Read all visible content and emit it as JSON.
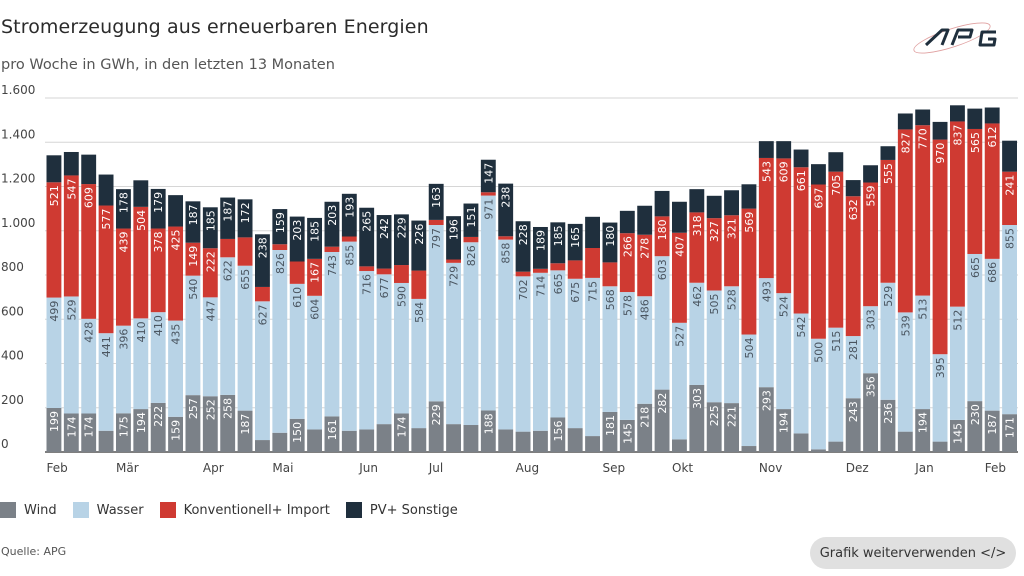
{
  "header": {
    "title": "Stromerzeugung aus erneuerbaren Energien",
    "subtitle": "pro Woche in GWh, in den letzten 13 Monaten",
    "logo_text": "APG"
  },
  "footer": {
    "source": "Quelle: APG",
    "reuse_button": "Grafik weiterverwenden </>"
  },
  "chart_data": {
    "type": "bar",
    "stacked": true,
    "title": "Stromerzeugung aus erneuerbaren Energien",
    "subtitle": "pro Woche in GWh, in den letzten 13 Monaten",
    "ylim": [
      0,
      1600
    ],
    "yticks": [
      0,
      200,
      400,
      600,
      800,
      1000,
      1200,
      1400,
      1600
    ],
    "ytick_labels": [
      "0",
      "200",
      "400",
      "600",
      "800",
      "1.000",
      "1.200",
      "1.400",
      "1.600"
    ],
    "grid": true,
    "legend_position": "bottom-left",
    "month_ticks": [
      {
        "label": "Feb",
        "week": 0
      },
      {
        "label": "Mär",
        "week": 4
      },
      {
        "label": "Apr",
        "week": 9
      },
      {
        "label": "Mai",
        "week": 13
      },
      {
        "label": "Jun",
        "week": 18
      },
      {
        "label": "Jul",
        "week": 22
      },
      {
        "label": "Aug",
        "week": 27
      },
      {
        "label": "Sep",
        "week": 32
      },
      {
        "label": "Okt",
        "week": 36
      },
      {
        "label": "Nov",
        "week": 41
      },
      {
        "label": "Dez",
        "week": 46
      },
      {
        "label": "Jan",
        "week": 50
      },
      {
        "label": "Feb",
        "week": 54
      }
    ],
    "series": [
      {
        "name": "Wind",
        "color": "#7b8188",
        "label_color": "#ffffff",
        "values": [
          199,
          174,
          174,
          96,
          175,
          194,
          222,
          159,
          257,
          252,
          258,
          187,
          54,
          87,
          150,
          102,
          161,
          96,
          102,
          126,
          174,
          108,
          229,
          126,
          122,
          188,
          102,
          92,
          96,
          156,
          108,
          72,
          181,
          145,
          218,
          282,
          57,
          303,
          225,
          221,
          27,
          293,
          194,
          84,
          12,
          47,
          243,
          356,
          236,
          92,
          194,
          47,
          145,
          230,
          187,
          171
        ]
      },
      {
        "name": "Wasser",
        "color": "#b8d3e6",
        "label_color": "#4a5560",
        "values": [
          499,
          529,
          428,
          441,
          396,
          410,
          410,
          435,
          540,
          447,
          622,
          655,
          627,
          826,
          610,
          604,
          743,
          855,
          716,
          677,
          590,
          584,
          797,
          729,
          826,
          971,
          858,
          702,
          714,
          665,
          675,
          715,
          568,
          578,
          486,
          603,
          527,
          462,
          505,
          528,
          504,
          493,
          524,
          542,
          500,
          515,
          281,
          303,
          529,
          539,
          513,
          395,
          512,
          665,
          686,
          855
        ]
      },
      {
        "name": "Konventionell+ Import",
        "color": "#cf3a32",
        "label_color": "#ffffff",
        "values": [
          521,
          547,
          609,
          577,
          439,
          504,
          378,
          425,
          149,
          222,
          83,
          128,
          65,
          26,
          101,
          167,
          24,
          23,
          21,
          26,
          81,
          128,
          23,
          15,
          24,
          15,
          15,
          21,
          18,
          32,
          83,
          135,
          108,
          266,
          278,
          180,
          407,
          318,
          327,
          321,
          569,
          543,
          609,
          661,
          697,
          705,
          632,
          559,
          555,
          827,
          770,
          970,
          837,
          565,
          612,
          241
        ]
      },
      {
        "name": "PV+ Sonstige",
        "color": "#1f2f3d",
        "label_color": "#ffffff",
        "values": [
          122,
          106,
          133,
          140,
          178,
          120,
          179,
          142,
          187,
          185,
          187,
          172,
          238,
          159,
          203,
          185,
          203,
          193,
          265,
          242,
          229,
          226,
          163,
          196,
          151,
          147,
          238,
          228,
          189,
          185,
          165,
          141,
          180,
          101,
          131,
          115,
          140,
          105,
          101,
          113,
          110,
          76,
          78,
          80,
          92,
          88,
          73,
          78,
          62,
          72,
          71,
          80,
          73,
          92,
          72,
          140
        ]
      }
    ],
    "label_min_value": 145
  }
}
